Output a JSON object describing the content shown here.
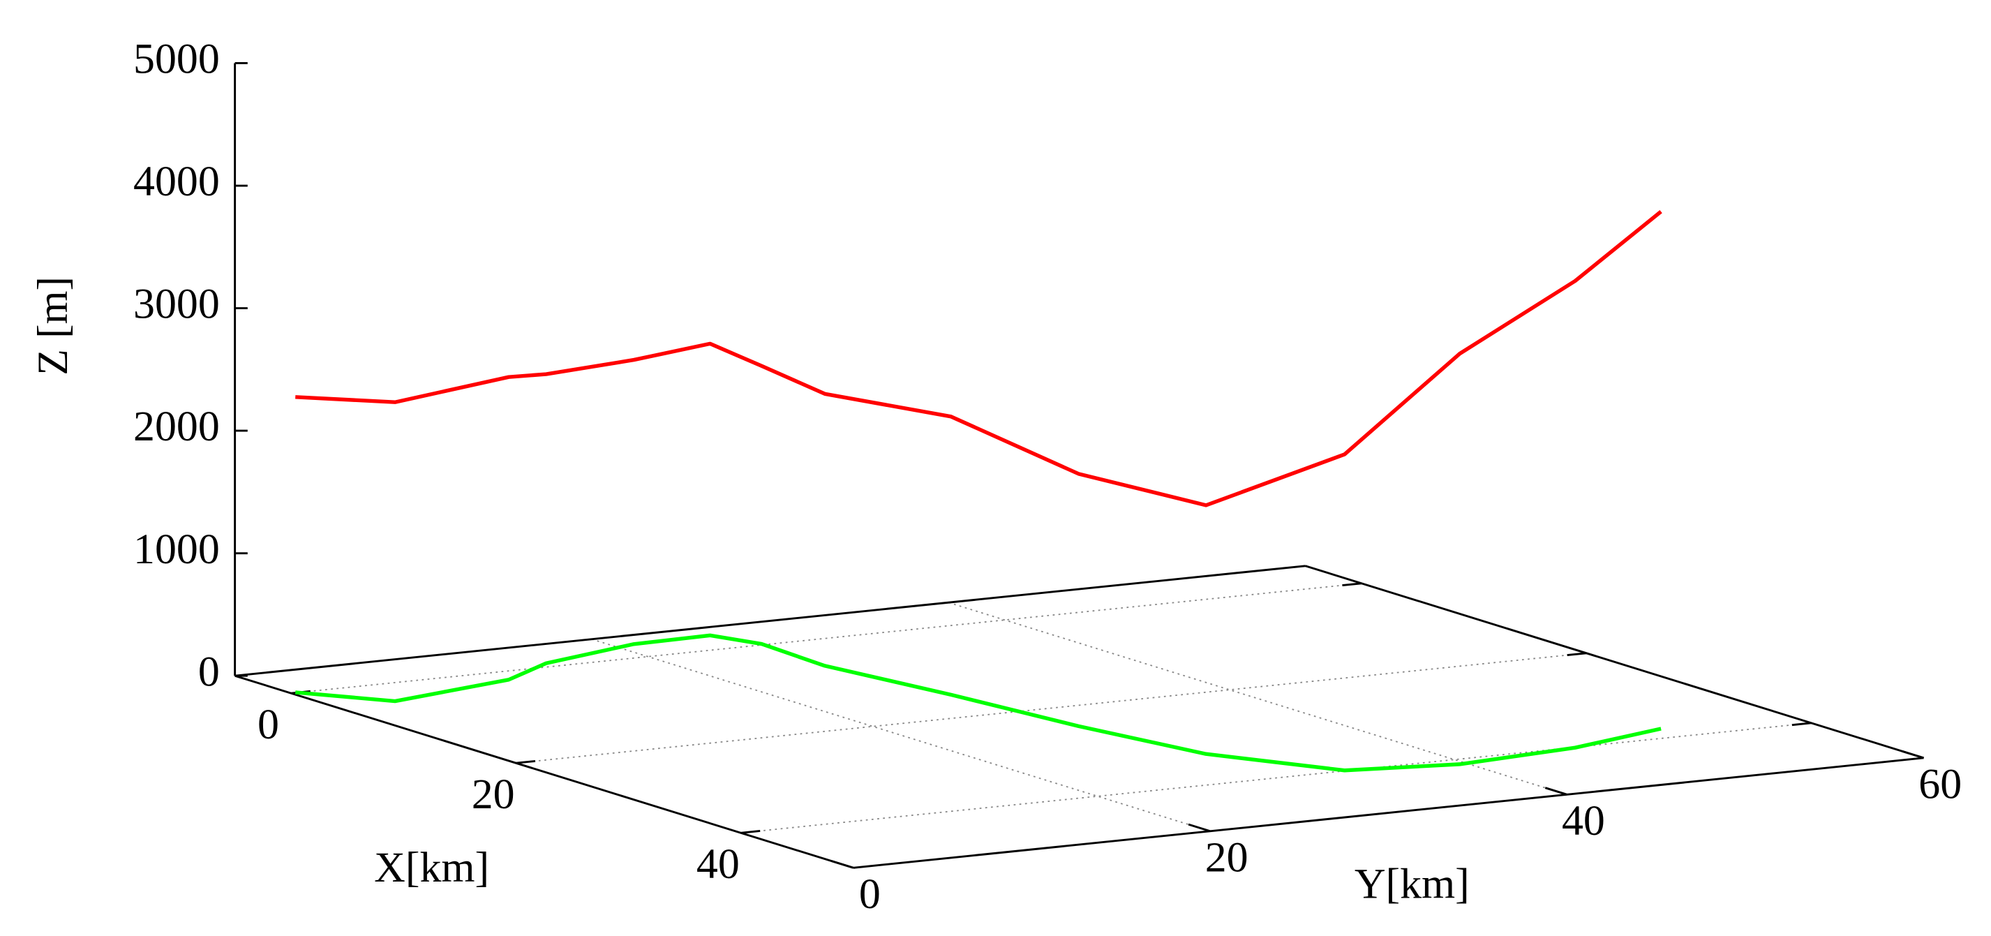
{
  "chart_data": {
    "type": "line3d",
    "xlabel": "X[km]",
    "ylabel": "Y[km]",
    "zlabel": "Z [m]",
    "xlim": [
      -5,
      50
    ],
    "ylim": [
      0,
      60
    ],
    "zlim": [
      0,
      5000
    ],
    "xticks": [
      0,
      20,
      40
    ],
    "yticks": [
      0,
      20,
      40,
      60
    ],
    "zticks": [
      0,
      1000,
      2000,
      3000,
      4000,
      5000
    ],
    "grid": true,
    "series": [
      {
        "color": "#ff0000",
        "projection_color": "#00ff00",
        "x": [
          -0.1,
          4.0,
          1.9,
          -0.8,
          -3.0,
          -3.2,
          -0.2,
          5.9,
          14.9,
          24.5,
          33.3,
          39.9,
          41.1,
          40.1,
          37.9
        ],
        "y": [
          0.3,
          3.3,
          11.0,
          14.8,
          21.1,
          25.5,
          26.5,
          26.2,
          27.6,
          28.7,
          30.3,
          33.9,
          39.6,
          46.7,
          52.9
        ],
        "z": [
          2410,
          2440,
          2470,
          2360,
          2320,
          2380,
          2270,
          2220,
          2270,
          2060,
          2030,
          2580,
          3350,
          3810,
          4220
        ]
      }
    ]
  }
}
